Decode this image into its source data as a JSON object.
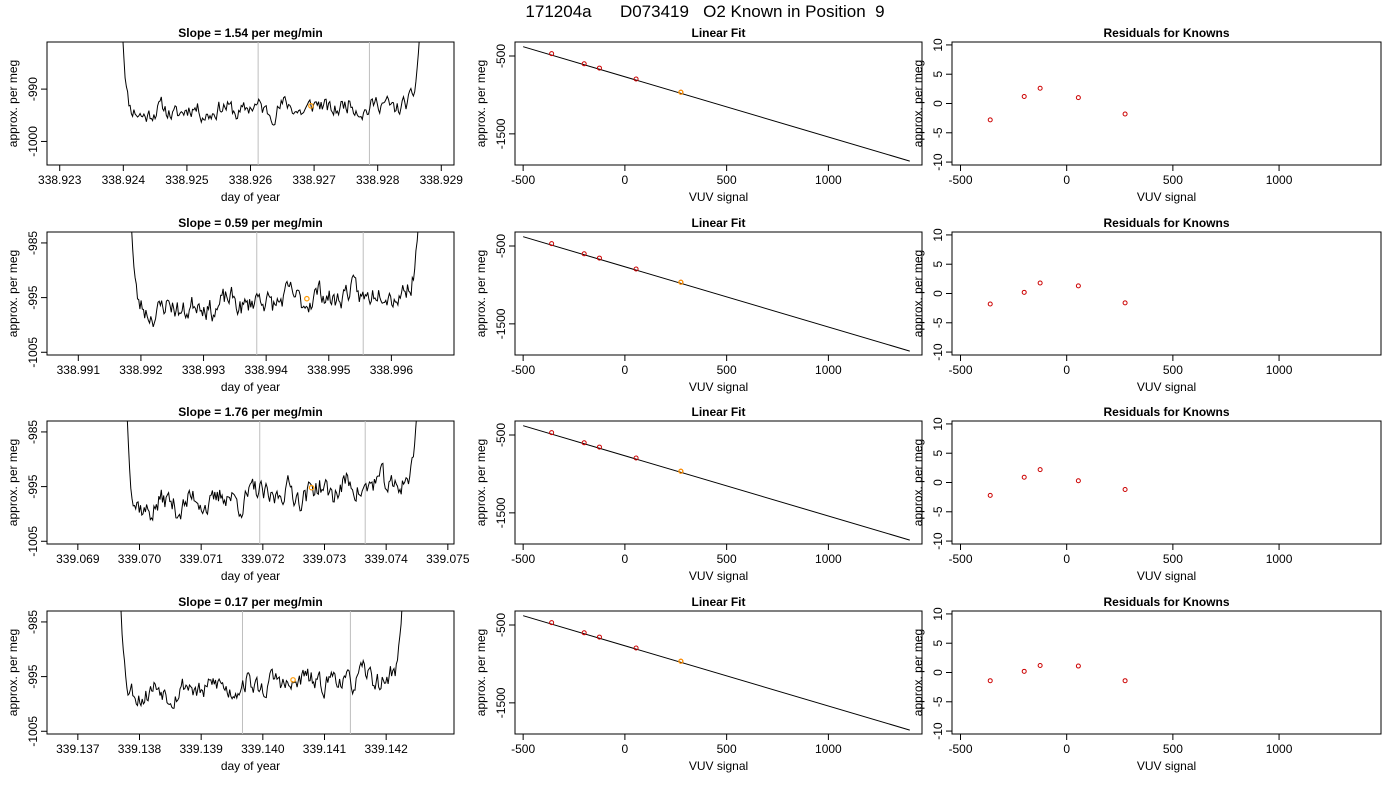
{
  "page_title": "171204a      D073419   O2 Known in Position  9",
  "colors": {
    "trace": "#000000",
    "marker_orange": "#ff9900",
    "marker_red": "#cc0000",
    "gridline": "#bebebe",
    "fit_line": "#000000"
  },
  "chart_data": [
    {
      "type": "line",
      "panel": "time-series",
      "row": 1,
      "title": "Slope =  1.54  per meg/min",
      "xlabel": "day of year",
      "ylabel": "approx. per meg",
      "xlim": [
        338.9228,
        338.9292
      ],
      "ylim": [
        -1004.5,
        -981
      ],
      "xticks": [
        338.923,
        338.924,
        338.925,
        338.926,
        338.927,
        338.928,
        338.929
      ],
      "xtick_labels": [
        "338.923",
        "338.924",
        "338.925",
        "338.926",
        "338.927",
        "338.928",
        "338.929"
      ],
      "yticks": [
        -990,
        -1000
      ],
      "ytick_labels": [
        "-990",
        "-1000"
      ],
      "vlines": [
        338.92612,
        338.92787
      ],
      "trace_range": [
        338.92397,
        338.92868
      ],
      "trace_base": -994.5,
      "trace_trend": 1.5,
      "trace_noise": 1.3,
      "trace_edge_top": -981,
      "seed": 11,
      "marker": {
        "x": 338.92695,
        "y": -993.2
      }
    },
    {
      "type": "scatter",
      "panel": "linear-fit",
      "row": 1,
      "title": "Linear Fit",
      "xlabel": "VUV signal",
      "ylabel": "approx. per meg",
      "xlim": [
        -540,
        1460
      ],
      "ylim": [
        -1900,
        -320
      ],
      "xticks": [
        -500,
        0,
        500,
        1000
      ],
      "xtick_labels": [
        "-500",
        "0",
        "500",
        "1000"
      ],
      "yticks": [
        -500,
        -1500
      ],
      "ytick_labels": [
        "-500",
        "-1500"
      ],
      "fit_line": {
        "x": [
          -500,
          1400
        ],
        "y": [
          -380,
          -1850
        ]
      },
      "points": [
        [
          -360,
          -470
        ],
        [
          -200,
          -600
        ],
        [
          -125,
          -655
        ],
        [
          55,
          -795
        ],
        [
          275,
          -965
        ]
      ],
      "highlight": [
        275,
        -965
      ]
    },
    {
      "type": "scatter",
      "panel": "residuals",
      "row": 1,
      "title": "Residuals for Knowns",
      "xlabel": "VUV signal",
      "ylabel": "approx. per meg",
      "xlim": [
        -540,
        1480
      ],
      "ylim": [
        -10.5,
        10.5
      ],
      "xticks": [
        -500,
        0,
        500,
        1000
      ],
      "xtick_labels": [
        "-500",
        "0",
        "500",
        "1000"
      ],
      "yticks": [
        10,
        5,
        0,
        -5,
        -10
      ],
      "ytick_labels": [
        "10",
        "5",
        "0",
        "-5",
        "-10"
      ],
      "points": [
        [
          -360,
          -2.8
        ],
        [
          -200,
          1.2
        ],
        [
          -125,
          2.6
        ],
        [
          55,
          1.0
        ],
        [
          275,
          -1.8
        ]
      ]
    },
    {
      "type": "line",
      "panel": "time-series",
      "row": 2,
      "title": "Slope =  0.59  per meg/min",
      "xlabel": "day of year",
      "ylabel": "approx. per meg",
      "xlim": [
        338.9905,
        338.997
      ],
      "ylim": [
        -1005.5,
        -983
      ],
      "xticks": [
        338.991,
        338.992,
        338.993,
        338.994,
        338.995,
        338.996
      ],
      "xtick_labels": [
        "338.991",
        "338.992",
        "338.993",
        "338.994",
        "338.995",
        "338.996"
      ],
      "yticks": [
        -985,
        -995,
        -1005
      ],
      "ytick_labels": [
        "-985",
        "-995",
        "-1005"
      ],
      "vlines": [
        338.99385,
        338.99555
      ],
      "trace_range": [
        338.99183,
        338.99645
      ],
      "trace_base": -997.5,
      "trace_trend": 4.0,
      "trace_noise": 1.6,
      "trace_edge_top": -983,
      "seed": 23,
      "marker": {
        "x": 338.99465,
        "y": -995.2
      }
    },
    {
      "type": "scatter",
      "panel": "linear-fit",
      "row": 2,
      "title": "Linear Fit",
      "xlabel": "VUV signal",
      "ylabel": "approx. per meg",
      "xlim": [
        -540,
        1460
      ],
      "ylim": [
        -1900,
        -320
      ],
      "xticks": [
        -500,
        0,
        500,
        1000
      ],
      "xtick_labels": [
        "-500",
        "0",
        "500",
        "1000"
      ],
      "yticks": [
        -500,
        -1500
      ],
      "ytick_labels": [
        "-500",
        "-1500"
      ],
      "fit_line": {
        "x": [
          -500,
          1400
        ],
        "y": [
          -380,
          -1850
        ]
      },
      "points": [
        [
          -360,
          -470
        ],
        [
          -200,
          -600
        ],
        [
          -125,
          -655
        ],
        [
          55,
          -795
        ],
        [
          275,
          -965
        ]
      ],
      "highlight": [
        275,
        -965
      ]
    },
    {
      "type": "scatter",
      "panel": "residuals",
      "row": 2,
      "title": "Residuals for Knowns",
      "xlabel": "VUV signal",
      "ylabel": "approx. per meg",
      "xlim": [
        -540,
        1480
      ],
      "ylim": [
        -10.5,
        10.5
      ],
      "xticks": [
        -500,
        0,
        500,
        1000
      ],
      "xtick_labels": [
        "-500",
        "0",
        "500",
        "1000"
      ],
      "yticks": [
        10,
        5,
        0,
        -5,
        -10
      ],
      "ytick_labels": [
        "10",
        "5",
        "0",
        "-5",
        "-10"
      ],
      "points": [
        [
          -360,
          -1.8
        ],
        [
          -200,
          0.2
        ],
        [
          -125,
          1.8
        ],
        [
          55,
          1.3
        ],
        [
          275,
          -1.6
        ]
      ]
    },
    {
      "type": "line",
      "panel": "time-series",
      "row": 3,
      "title": "Slope =  1.76  per meg/min",
      "xlabel": "day of year",
      "ylabel": "approx. per meg",
      "xlim": [
        339.0685,
        339.0751
      ],
      "ylim": [
        -1005.5,
        -983
      ],
      "xticks": [
        339.069,
        339.07,
        339.071,
        339.072,
        339.073,
        339.074,
        339.075
      ],
      "xtick_labels": [
        "339.069",
        "339.070",
        "339.071",
        "339.072",
        "339.073",
        "339.074",
        "339.075"
      ],
      "yticks": [
        -985,
        -995,
        -1005
      ],
      "ytick_labels": [
        "-985",
        "-995",
        "-1005"
      ],
      "vlines": [
        339.07195,
        339.07366
      ],
      "trace_range": [
        339.06978,
        339.07452
      ],
      "trace_base": -999.0,
      "trace_trend": 5.0,
      "trace_noise": 1.7,
      "trace_edge_top": -983,
      "seed": 37,
      "marker": {
        "x": 339.07279,
        "y": -995.2
      }
    },
    {
      "type": "scatter",
      "panel": "linear-fit",
      "row": 3,
      "title": "Linear Fit",
      "xlabel": "VUV signal",
      "ylabel": "approx. per meg",
      "xlim": [
        -540,
        1460
      ],
      "ylim": [
        -1900,
        -320
      ],
      "xticks": [
        -500,
        0,
        500,
        1000
      ],
      "xtick_labels": [
        "-500",
        "0",
        "500",
        "1000"
      ],
      "yticks": [
        -500,
        -1500
      ],
      "ytick_labels": [
        "-500",
        "-1500"
      ],
      "fit_line": {
        "x": [
          -500,
          1400
        ],
        "y": [
          -380,
          -1850
        ]
      },
      "points": [
        [
          -360,
          -470
        ],
        [
          -200,
          -600
        ],
        [
          -125,
          -655
        ],
        [
          55,
          -795
        ],
        [
          275,
          -965
        ]
      ],
      "highlight": [
        275,
        -965
      ]
    },
    {
      "type": "scatter",
      "panel": "residuals",
      "row": 3,
      "title": "Residuals for Knowns",
      "xlabel": "VUV signal",
      "ylabel": "approx. per meg",
      "xlim": [
        -540,
        1480
      ],
      "ylim": [
        -10.5,
        10.5
      ],
      "xticks": [
        -500,
        0,
        500,
        1000
      ],
      "xtick_labels": [
        "-500",
        "0",
        "500",
        "1000"
      ],
      "yticks": [
        10,
        5,
        0,
        -5,
        -10
      ],
      "ytick_labels": [
        "10",
        "5",
        "0",
        "-5",
        "-10"
      ],
      "points": [
        [
          -360,
          -2.2
        ],
        [
          -200,
          0.9
        ],
        [
          -125,
          2.2
        ],
        [
          55,
          0.3
        ],
        [
          275,
          -1.2
        ]
      ]
    },
    {
      "type": "line",
      "panel": "time-series",
      "row": 4,
      "title": "Slope =  0.17  per meg/min",
      "xlabel": "day of year",
      "ylabel": "approx. per meg",
      "xlim": [
        339.1365,
        339.1431
      ],
      "ylim": [
        -1005.5,
        -983
      ],
      "xticks": [
        339.137,
        339.138,
        339.139,
        339.14,
        339.141,
        339.142
      ],
      "xtick_labels": [
        "339.137",
        "339.138",
        "339.139",
        "339.140",
        "339.141",
        "339.142"
      ],
      "yticks": [
        -985,
        -995,
        -1005
      ],
      "ytick_labels": [
        "-985",
        "-995",
        "-1005"
      ],
      "vlines": [
        339.13967,
        339.14142
      ],
      "trace_range": [
        339.13768,
        339.14228
      ],
      "trace_base": -998.0,
      "trace_trend": 3.0,
      "trace_noise": 1.5,
      "trace_edge_top": -983,
      "seed": 53,
      "marker": {
        "x": 339.14049,
        "y": -995.6
      }
    },
    {
      "type": "scatter",
      "panel": "linear-fit",
      "row": 4,
      "title": "Linear Fit",
      "xlabel": "VUV signal",
      "ylabel": "approx. per meg",
      "xlim": [
        -540,
        1460
      ],
      "ylim": [
        -1900,
        -320
      ],
      "xticks": [
        -500,
        0,
        500,
        1000
      ],
      "xtick_labels": [
        "-500",
        "0",
        "500",
        "1000"
      ],
      "yticks": [
        -500,
        -1500
      ],
      "ytick_labels": [
        "-500",
        "-1500"
      ],
      "fit_line": {
        "x": [
          -500,
          1400
        ],
        "y": [
          -380,
          -1850
        ]
      },
      "points": [
        [
          -360,
          -470
        ],
        [
          -200,
          -600
        ],
        [
          -125,
          -655
        ],
        [
          55,
          -795
        ],
        [
          275,
          -965
        ]
      ],
      "highlight": [
        275,
        -965
      ]
    },
    {
      "type": "scatter",
      "panel": "residuals",
      "row": 4,
      "title": "Residuals for Knowns",
      "xlabel": "VUV signal",
      "ylabel": "approx. per meg",
      "xlim": [
        -540,
        1480
      ],
      "ylim": [
        -10.5,
        10.5
      ],
      "xticks": [
        -500,
        0,
        500,
        1000
      ],
      "xtick_labels": [
        "-500",
        "0",
        "500",
        "1000"
      ],
      "yticks": [
        10,
        5,
        0,
        -5,
        -10
      ],
      "ytick_labels": [
        "10",
        "5",
        "0",
        "-5",
        "-10"
      ],
      "points": [
        [
          -360,
          -1.4
        ],
        [
          -200,
          0.2
        ],
        [
          -125,
          1.2
        ],
        [
          55,
          1.1
        ],
        [
          275,
          -1.4
        ]
      ]
    }
  ]
}
